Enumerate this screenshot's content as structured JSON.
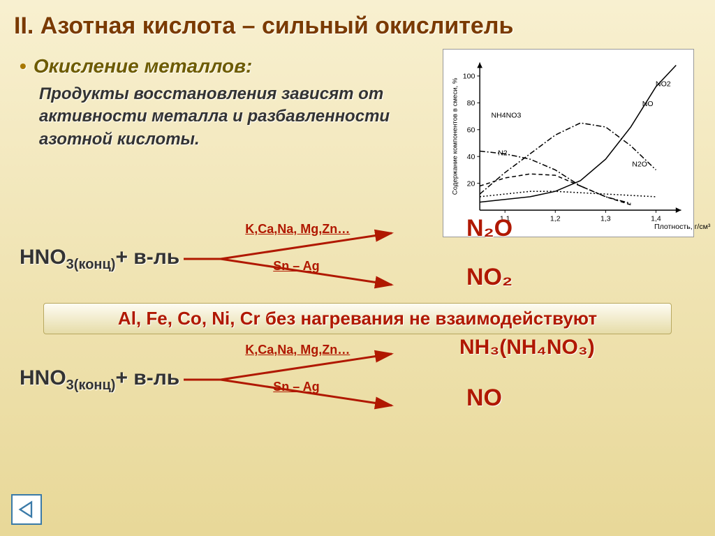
{
  "title": "II. Азотная кислота – сильный окислитель",
  "subheading": "Окисление металлов:",
  "bodytext": "Продукты восстановления зависят от активности металла и разбавленности азотной кислоты.",
  "chart": {
    "type": "line",
    "xlabel": "Плотность, г/см³",
    "ylabel": "Содержание компонентов в смеси, %",
    "xlim": [
      1.05,
      1.45
    ],
    "ylim": [
      0,
      110
    ],
    "xticks": [
      "1,1",
      "1,2",
      "1,3",
      "1,4"
    ],
    "yticks": [
      20,
      40,
      60,
      80,
      100
    ],
    "background_color": "#ffffff",
    "series": [
      {
        "name": "NO2",
        "color": "#000000",
        "style": "solid",
        "label_x": 310,
        "label_y": 45,
        "points": [
          [
            1.05,
            6
          ],
          [
            1.1,
            8
          ],
          [
            1.15,
            10
          ],
          [
            1.2,
            14
          ],
          [
            1.25,
            22
          ],
          [
            1.3,
            38
          ],
          [
            1.35,
            62
          ],
          [
            1.4,
            92
          ],
          [
            1.44,
            108
          ]
        ]
      },
      {
        "name": "NO",
        "color": "#000000",
        "style": "dashdot",
        "label_x": 290,
        "label_y": 75,
        "points": [
          [
            1.05,
            12
          ],
          [
            1.1,
            28
          ],
          [
            1.15,
            42
          ],
          [
            1.2,
            56
          ],
          [
            1.25,
            65
          ],
          [
            1.3,
            62
          ],
          [
            1.35,
            48
          ],
          [
            1.4,
            30
          ]
        ]
      },
      {
        "name": "NH4NO3",
        "color": "#000000",
        "style": "dashdot",
        "label_x": 65,
        "label_y": 92,
        "points": [
          [
            1.05,
            44
          ],
          [
            1.1,
            42
          ],
          [
            1.15,
            38
          ],
          [
            1.2,
            30
          ],
          [
            1.25,
            18
          ],
          [
            1.3,
            10
          ],
          [
            1.35,
            5
          ]
        ]
      },
      {
        "name": "N2",
        "color": "#000000",
        "style": "dash",
        "label_x": 75,
        "label_y": 148,
        "points": [
          [
            1.05,
            18
          ],
          [
            1.1,
            24
          ],
          [
            1.15,
            27
          ],
          [
            1.2,
            26
          ],
          [
            1.25,
            18
          ],
          [
            1.3,
            10
          ],
          [
            1.35,
            4
          ]
        ]
      },
      {
        "name": "N2O",
        "color": "#000000",
        "style": "dot",
        "label_x": 275,
        "label_y": 165,
        "points": [
          [
            1.05,
            10
          ],
          [
            1.1,
            12
          ],
          [
            1.15,
            14
          ],
          [
            1.2,
            14
          ],
          [
            1.25,
            13
          ],
          [
            1.3,
            12
          ],
          [
            1.35,
            11
          ],
          [
            1.4,
            10
          ]
        ]
      }
    ]
  },
  "reaction1": {
    "reagent": "HNO",
    "reagent_sub": "3(конц)",
    "reagent_tail": "+ в-ль",
    "branch_top": "K,Ca,Na, Mg,Zn…",
    "branch_bottom": "Sn – Ag",
    "product_top": "N₂O",
    "product_bottom": "NO₂",
    "arrow_color": "#b01800"
  },
  "note": "Al, Fe, Co, Ni, Cr без нагревания не взаимодействуют",
  "reaction2": {
    "reagent": "HNO",
    "reagent_sub": "3(конц)",
    "reagent_tail": "+ в-ль",
    "branch_top": "K,Ca,Na, Mg,Zn…",
    "branch_bottom": "Sn – Ag",
    "product_top": "NH₃(NH₄NO₃)",
    "product_bottom": "NO",
    "arrow_color": "#b01800"
  },
  "colors": {
    "title_color": "#7a3a00",
    "sub_color": "#6d5b00",
    "accent": "#b01800",
    "nav_color": "#3a7aa8"
  }
}
